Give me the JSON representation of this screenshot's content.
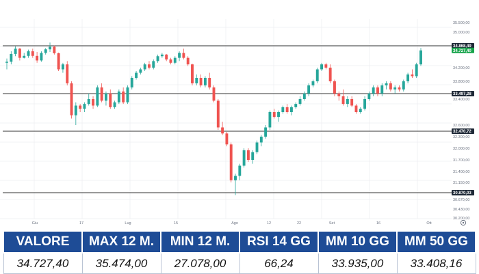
{
  "chart_data": {
    "type": "candlestick",
    "y_ticks": [
      "35.500,00",
      "35.000,00",
      "34.200,00",
      "33.800,00",
      "33.400,00",
      "32.600,00",
      "32.300,00",
      "32.000,00",
      "31.700,00",
      "31.400,00",
      "31.150,00",
      "30.670,00",
      "30.430,00",
      "30.200,00"
    ],
    "x_ticks": [
      "Giu",
      "17",
      "Lug",
      "15",
      "Ago",
      "12",
      "22",
      "Set",
      "16",
      "Ott"
    ],
    "price_tags": [
      {
        "label": "34.868,49",
        "value": 34868.49,
        "color": "#1f2937"
      },
      {
        "label": "34.727,40",
        "value": 34727.4,
        "color": "#16a34a"
      },
      {
        "label": "33.497,28",
        "value": 33497.28,
        "color": "#1f2937"
      },
      {
        "label": "32.470,72",
        "value": 32470.72,
        "color": "#1f2937"
      },
      {
        "label": "30.870,03",
        "value": 30870.03,
        "color": "#1f2937"
      }
    ],
    "horizontal_levels": [
      34868.49,
      33497.28,
      32470.72,
      30870.03
    ],
    "ohlc": [
      [
        34350,
        34480,
        34150,
        34380
      ],
      [
        34380,
        34700,
        34300,
        34620
      ],
      [
        34620,
        34850,
        34550,
        34780
      ],
      [
        34780,
        34800,
        34420,
        34500
      ],
      [
        34500,
        34650,
        34480,
        34560
      ],
      [
        34560,
        34750,
        34500,
        34700
      ],
      [
        34700,
        34780,
        34500,
        34560
      ],
      [
        34560,
        34680,
        34350,
        34420
      ],
      [
        34420,
        34700,
        34380,
        34650
      ],
      [
        34650,
        34800,
        34600,
        34760
      ],
      [
        34760,
        34900,
        34680,
        34840
      ],
      [
        34840,
        34870,
        34600,
        34640
      ],
      [
        34640,
        34660,
        34100,
        34150
      ],
      [
        34150,
        34350,
        34050,
        34300
      ],
      [
        34300,
        34400,
        33700,
        33750
      ],
      [
        33750,
        33800,
        32800,
        32900
      ],
      [
        32900,
        33300,
        32600,
        33200
      ],
      [
        33200,
        33250,
        33000,
        33100
      ],
      [
        33100,
        33300,
        33000,
        33250
      ],
      [
        33250,
        33500,
        33200,
        33400
      ],
      [
        33400,
        33450,
        33100,
        33200
      ],
      [
        33200,
        33700,
        33150,
        33650
      ],
      [
        33650,
        33750,
        33300,
        33350
      ],
      [
        33350,
        33550,
        33200,
        33500
      ],
      [
        33500,
        33600,
        33100,
        33150
      ],
      [
        33150,
        33350,
        33100,
        33300
      ],
      [
        33300,
        33600,
        33250,
        33550
      ],
      [
        33550,
        33650,
        33250,
        33300
      ],
      [
        33300,
        33700,
        33250,
        33650
      ],
      [
        33650,
        33950,
        33600,
        33900
      ],
      [
        33900,
        34100,
        33850,
        34050
      ],
      [
        34050,
        34200,
        34000,
        34150
      ],
      [
        34150,
        34350,
        34100,
        34300
      ],
      [
        34300,
        34400,
        34150,
        34200
      ],
      [
        34200,
        34450,
        34150,
        34400
      ],
      [
        34400,
        34600,
        34350,
        34550
      ],
      [
        34550,
        34650,
        34500,
        34600
      ],
      [
        34600,
        34620,
        34400,
        34450
      ],
      [
        34450,
        34500,
        34300,
        34350
      ],
      [
        34350,
        34550,
        34300,
        34500
      ],
      [
        34500,
        34700,
        34400,
        34650
      ],
      [
        34650,
        34780,
        34450,
        34500
      ],
      [
        34500,
        34550,
        34250,
        34300
      ],
      [
        34300,
        34320,
        33700,
        33750
      ],
      [
        33750,
        34000,
        33700,
        33900
      ],
      [
        33900,
        34000,
        33650,
        33700
      ],
      [
        33700,
        33950,
        33650,
        33900
      ],
      [
        33900,
        34050,
        33600,
        33650
      ],
      [
        33650,
        33700,
        33300,
        33350
      ],
      [
        33350,
        33400,
        32500,
        32550
      ],
      [
        32550,
        32700,
        32350,
        32400
      ],
      [
        32400,
        32450,
        32050,
        32100
      ],
      [
        32100,
        32150,
        31150,
        31200
      ],
      [
        31200,
        31350,
        30800,
        31300
      ],
      [
        31300,
        31600,
        31200,
        31550
      ],
      [
        31550,
        32000,
        31500,
        31950
      ],
      [
        31950,
        32000,
        31650,
        31700
      ],
      [
        31700,
        31950,
        31600,
        31900
      ],
      [
        31900,
        32200,
        31850,
        32150
      ],
      [
        32150,
        32350,
        32050,
        32300
      ],
      [
        32300,
        32600,
        32250,
        32550
      ],
      [
        32550,
        33050,
        32500,
        33000
      ],
      [
        33000,
        33100,
        32800,
        32850
      ],
      [
        32850,
        33050,
        32700,
        33000
      ],
      [
        33000,
        33200,
        32950,
        33150
      ],
      [
        33150,
        33250,
        32950,
        33000
      ],
      [
        33000,
        33200,
        32900,
        33150
      ],
      [
        33150,
        33300,
        33100,
        33250
      ],
      [
        33250,
        33450,
        33200,
        33400
      ],
      [
        33400,
        33550,
        33350,
        33500
      ],
      [
        33500,
        33750,
        33450,
        33700
      ],
      [
        33700,
        33850,
        33650,
        33800
      ],
      [
        33800,
        34200,
        33750,
        34150
      ],
      [
        34150,
        34350,
        34100,
        34300
      ],
      [
        34300,
        34350,
        34150,
        34200
      ],
      [
        34200,
        34300,
        33750,
        33800
      ],
      [
        33800,
        33850,
        33450,
        33500
      ],
      [
        33500,
        33550,
        33350,
        33450
      ],
      [
        33450,
        33600,
        33200,
        33250
      ],
      [
        33250,
        33450,
        33150,
        33400
      ],
      [
        33400,
        33450,
        33150,
        33200
      ],
      [
        33200,
        33250,
        32950,
        33000
      ],
      [
        33000,
        33150,
        32950,
        33100
      ],
      [
        33100,
        33450,
        33050,
        33400
      ],
      [
        33400,
        33550,
        33350,
        33500
      ],
      [
        33500,
        33700,
        33450,
        33650
      ],
      [
        33650,
        33700,
        33450,
        33500
      ],
      [
        33500,
        33750,
        33450,
        33700
      ],
      [
        33700,
        33800,
        33600,
        33750
      ],
      [
        33750,
        33800,
        33550,
        33600
      ],
      [
        33600,
        33700,
        33500,
        33650
      ],
      [
        33650,
        33700,
        33550,
        33600
      ],
      [
        33600,
        33850,
        33550,
        33800
      ],
      [
        33800,
        34050,
        33750,
        34000
      ],
      [
        34000,
        34150,
        33900,
        33950
      ],
      [
        33950,
        34350,
        33900,
        34300
      ],
      [
        34300,
        34800,
        34250,
        34727.4
      ]
    ]
  },
  "stats": {
    "headers": [
      "VALORE",
      "MAX 12 M.",
      "MIN 12 M.",
      "RSI 14 GG",
      "MM 10 GG",
      "MM 50 GG"
    ],
    "values": [
      "34.727,40",
      "35.474,00",
      "27.078,00",
      "66,24",
      "33.935,00",
      "33.408,16"
    ]
  },
  "colors": {
    "up": "#26a69a",
    "down": "#ef5350",
    "header_bg": "#1e4c96",
    "grid": "#e5e7eb",
    "level_line": "#333333"
  }
}
